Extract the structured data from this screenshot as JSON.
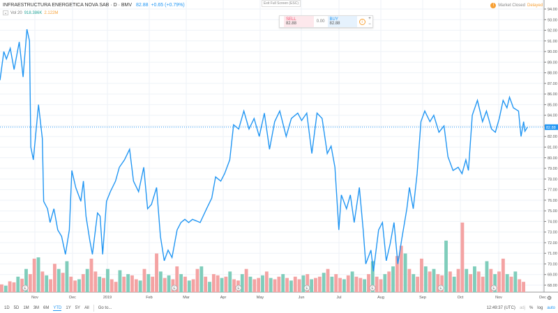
{
  "header": {
    "symbol": "INFRAESTRUCTURA ENERGETICA NOVA SAB · D · BMV",
    "last": "82.88",
    "change": "+0.65 (+0.79%)"
  },
  "volume_legend": {
    "label": "Vol 20",
    "value": "918.386K",
    "ma": "2.122M"
  },
  "exit_fullscreen": "Exit Full Screen (ESC)",
  "market": {
    "status": "Market Closed",
    "delayed": "Delayed"
  },
  "trade": {
    "sell_label": "SELL",
    "sell": "82.88",
    "spread": "0.00",
    "buy_label": "BUY",
    "buy": "82.88",
    "plus": "+",
    "minus": "−"
  },
  "ranges": [
    "1D",
    "5D",
    "1M",
    "3M",
    "6M",
    "YTD",
    "1Y",
    "5Y",
    "All"
  ],
  "active_range": "YTD",
  "goto": "Go to...",
  "footer": {
    "time": "12:49:37 (UTC)",
    "adj": "adj",
    "pct": "%",
    "log": "log",
    "auto": "auto"
  },
  "colors": {
    "line": "#2196f3",
    "up": "#7fcdbb",
    "down": "#f4a3a3",
    "accent": "#2196f3",
    "warning": "#f7a035"
  },
  "chart_data": {
    "type": "line",
    "ylim": [
      68,
      94
    ],
    "yticks": [
      "94.00",
      "93.00",
      "92.00",
      "91.00",
      "90.00",
      "89.00",
      "88.00",
      "87.00",
      "86.00",
      "85.00",
      "84.00",
      "83.00",
      "82.00",
      "81.00",
      "80.00",
      "79.00",
      "78.00",
      "77.00",
      "76.00",
      "75.00",
      "74.00",
      "73.00",
      "72.00",
      "71.00",
      "70.00",
      "69.00",
      "68.00"
    ],
    "xticks": [
      "Nov",
      "Dec",
      "2019",
      "Feb",
      "Mar",
      "Apr",
      "May",
      "Jun",
      "Jul",
      "Aug",
      "Sep",
      "Oct",
      "Nov",
      "Dec"
    ],
    "last_price_label": "82.88",
    "grid": true,
    "series": [
      {
        "points": [
          [
            "2018-10-05",
            87.3
          ],
          [
            "2018-10-08",
            90.0
          ],
          [
            "2018-10-10",
            89.3
          ],
          [
            "2018-10-13",
            90.3
          ],
          [
            "2018-10-16",
            88.3
          ],
          [
            "2018-10-20",
            90.9
          ],
          [
            "2018-10-23",
            87.6
          ],
          [
            "2018-10-26",
            92.1
          ],
          [
            "2018-10-28",
            91.0
          ],
          [
            "2018-10-29",
            81.0
          ],
          [
            "2018-10-31",
            79.8
          ],
          [
            "2018-11-04",
            85.0
          ],
          [
            "2018-11-07",
            81.8
          ],
          [
            "2018-11-08",
            75.9
          ],
          [
            "2018-11-11",
            75.2
          ],
          [
            "2018-11-13",
            73.9
          ],
          [
            "2018-11-16",
            75.2
          ],
          [
            "2018-11-19",
            73.2
          ],
          [
            "2018-11-22",
            72.6
          ],
          [
            "2018-11-25",
            70.9
          ],
          [
            "2018-11-28",
            73.2
          ],
          [
            "2018-11-30",
            78.8
          ],
          [
            "2018-12-03",
            77.2
          ],
          [
            "2018-12-07",
            75.9
          ],
          [
            "2018-12-09",
            77.8
          ],
          [
            "2018-12-11",
            74.5
          ],
          [
            "2018-12-14",
            72.2
          ],
          [
            "2018-12-16",
            70.9
          ],
          [
            "2018-12-20",
            74.8
          ],
          [
            "2018-12-22",
            74.5
          ],
          [
            "2018-12-24",
            70.9
          ],
          [
            "2018-12-27",
            75.9
          ],
          [
            "2018-12-30",
            76.8
          ],
          [
            "2019-01-03",
            77.8
          ],
          [
            "2019-01-06",
            79.1
          ],
          [
            "2019-01-10",
            79.8
          ],
          [
            "2019-01-14",
            80.8
          ],
          [
            "2019-01-17",
            77.8
          ],
          [
            "2019-01-21",
            76.8
          ],
          [
            "2019-01-25",
            79.1
          ],
          [
            "2019-01-28",
            75.2
          ],
          [
            "2019-01-31",
            75.6
          ],
          [
            "2019-02-04",
            77.2
          ],
          [
            "2019-02-07",
            72.6
          ],
          [
            "2019-02-10",
            70.3
          ],
          [
            "2019-02-13",
            71.3
          ],
          [
            "2019-02-16",
            70.6
          ],
          [
            "2019-02-20",
            73.2
          ],
          [
            "2019-02-23",
            73.9
          ],
          [
            "2019-02-26",
            74.2
          ],
          [
            "2019-03-01",
            73.9
          ],
          [
            "2019-03-04",
            74.2
          ],
          [
            "2019-03-10",
            73.9
          ],
          [
            "2019-03-15",
            75.2
          ],
          [
            "2019-03-19",
            76.2
          ],
          [
            "2019-03-22",
            78.2
          ],
          [
            "2019-03-26",
            77.8
          ],
          [
            "2019-03-29",
            78.5
          ],
          [
            "2019-04-02",
            79.8
          ],
          [
            "2019-04-05",
            83.1
          ],
          [
            "2019-04-09",
            82.7
          ],
          [
            "2019-04-13",
            84.4
          ],
          [
            "2019-04-17",
            82.7
          ],
          [
            "2019-04-21",
            83.7
          ],
          [
            "2019-04-25",
            82.0
          ],
          [
            "2019-04-29",
            84.2
          ],
          [
            "2019-05-03",
            80.8
          ],
          [
            "2019-05-07",
            83.4
          ],
          [
            "2019-05-11",
            84.4
          ],
          [
            "2019-05-16",
            82.0
          ],
          [
            "2019-05-20",
            83.7
          ],
          [
            "2019-05-25",
            84.2
          ],
          [
            "2019-05-28",
            83.5
          ],
          [
            "2019-06-01",
            84.2
          ],
          [
            "2019-06-05",
            80.4
          ],
          [
            "2019-06-09",
            84.2
          ],
          [
            "2019-06-13",
            83.7
          ],
          [
            "2019-06-17",
            80.4
          ],
          [
            "2019-06-20",
            81.1
          ],
          [
            "2019-06-23",
            79.1
          ],
          [
            "2019-06-26",
            73.2
          ],
          [
            "2019-06-28",
            76.5
          ],
          [
            "2019-07-02",
            75.2
          ],
          [
            "2019-07-05",
            76.5
          ],
          [
            "2019-07-08",
            73.9
          ],
          [
            "2019-07-12",
            77.2
          ],
          [
            "2019-07-15",
            73.2
          ],
          [
            "2019-07-17",
            70.0
          ],
          [
            "2019-07-21",
            71.3
          ],
          [
            "2019-07-23",
            69.3
          ],
          [
            "2019-07-27",
            73.2
          ],
          [
            "2019-07-30",
            73.9
          ],
          [
            "2019-08-02",
            70.3
          ],
          [
            "2019-08-05",
            71.9
          ],
          [
            "2019-08-08",
            73.9
          ],
          [
            "2019-08-11",
            70.0
          ],
          [
            "2019-08-14",
            72.3
          ],
          [
            "2019-08-18",
            75.2
          ],
          [
            "2019-08-20",
            77.2
          ],
          [
            "2019-08-23",
            75.2
          ],
          [
            "2019-08-26",
            78.5
          ],
          [
            "2019-08-29",
            83.4
          ],
          [
            "2019-09-01",
            84.4
          ],
          [
            "2019-09-05",
            83.4
          ],
          [
            "2019-09-08",
            84.0
          ],
          [
            "2019-09-12",
            82.4
          ],
          [
            "2019-09-16",
            83.0
          ],
          [
            "2019-09-19",
            80.1
          ],
          [
            "2019-09-23",
            78.8
          ],
          [
            "2019-09-27",
            79.1
          ],
          [
            "2019-09-30",
            78.5
          ],
          [
            "2019-10-03",
            79.8
          ],
          [
            "2019-10-05",
            78.8
          ],
          [
            "2019-10-08",
            84.0
          ],
          [
            "2019-10-12",
            85.4
          ],
          [
            "2019-10-16",
            83.4
          ],
          [
            "2019-10-19",
            84.4
          ],
          [
            "2019-10-23",
            82.7
          ],
          [
            "2019-10-26",
            82.4
          ],
          [
            "2019-10-29",
            83.7
          ],
          [
            "2019-11-01",
            85.4
          ],
          [
            "2019-11-04",
            84.7
          ],
          [
            "2019-11-06",
            85.7
          ],
          [
            "2019-11-09",
            84.7
          ],
          [
            "2019-11-13",
            84.4
          ],
          [
            "2019-11-15",
            82.0
          ],
          [
            "2019-11-17",
            83.4
          ],
          [
            "2019-11-18",
            82.5
          ],
          [
            "2019-11-20",
            82.88
          ]
        ]
      }
    ],
    "volume_k": [
      300,
      250,
      420,
      380,
      600,
      520,
      900,
      700,
      1300,
      1350,
      800,
      650,
      500,
      1100,
      900,
      750,
      1200,
      600,
      450,
      500,
      700,
      900,
      1300,
      800,
      600,
      550,
      900,
      500,
      400,
      850,
      600,
      700,
      650,
      500,
      450,
      900,
      700,
      600,
      1500,
      800,
      550,
      650,
      500,
      1000,
      700,
      600,
      450,
      500,
      900,
      1000,
      600,
      400,
      700,
      650,
      550,
      600,
      800,
      500,
      450,
      700,
      900,
      600,
      500,
      550,
      650,
      800,
      550,
      500,
      600,
      700,
      550,
      450,
      600,
      500,
      650,
      700,
      500,
      550,
      600,
      750,
      900,
      600,
      700,
      550,
      500,
      650,
      800,
      600,
      550,
      500,
      700,
      1200,
      600,
      500,
      700,
      800,
      1000,
      1400,
      1800,
      1500,
      900,
      700,
      600,
      1300,
      1000,
      800,
      900,
      700,
      650,
      2000,
      800,
      600,
      900,
      2700,
      900,
      700,
      1000,
      800,
      600,
      1200,
      900,
      700,
      800,
      1300,
      700,
      600,
      800,
      500,
      400
    ],
    "event_markers": [
      "E",
      "E",
      "E",
      "E",
      "E",
      "E",
      "E"
    ]
  }
}
